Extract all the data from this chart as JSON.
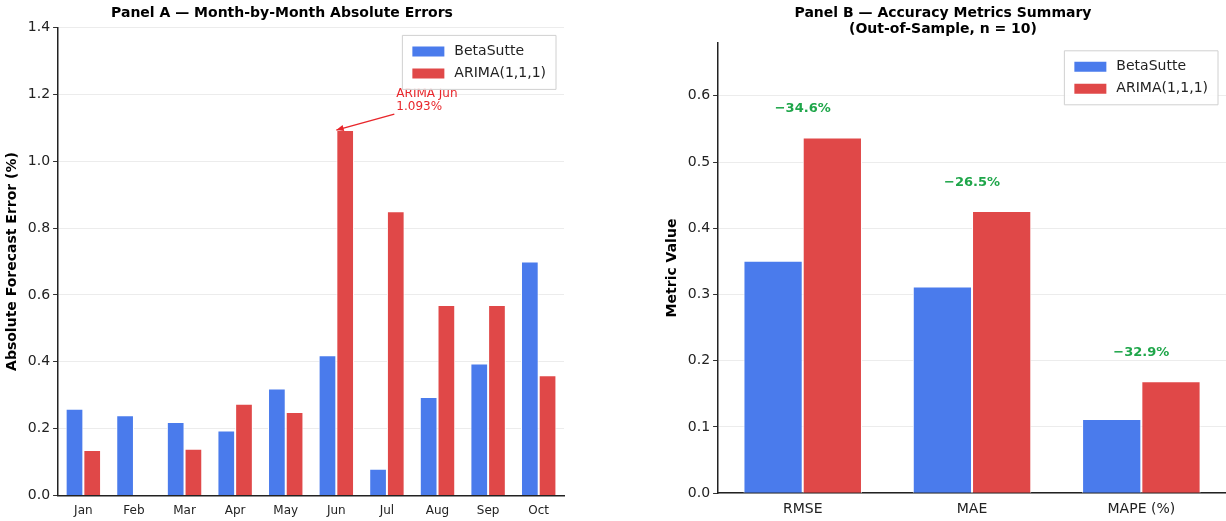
{
  "chart_data": [
    {
      "type": "bar",
      "title": "Panel A — Month-by-Month Absolute Errors",
      "ylabel": "Absolute Forecast Error (%)",
      "categories": [
        "Jan",
        "Feb",
        "Mar",
        "Apr",
        "May",
        "Jun",
        "Jul",
        "Aug",
        "Sep",
        "Oct"
      ],
      "series": [
        {
          "name": "BetaSutte",
          "color": "#4a7bec",
          "values": [
            0.26,
            0.24,
            0.22,
            0.195,
            0.32,
            0.42,
            0.08,
            0.295,
            0.395,
            0.7
          ]
        },
        {
          "name": "ARIMA(1,1,1)",
          "color": "#e04848",
          "values": [
            0.136,
            null,
            0.14,
            0.275,
            0.25,
            1.093,
            0.85,
            0.57,
            0.57,
            0.36
          ]
        }
      ],
      "ylim": [
        0,
        1.4
      ],
      "yticks": [
        {
          "value": 0,
          "label": "0.0"
        },
        {
          "value": 0.2,
          "label": "0.2"
        },
        {
          "value": 0.4,
          "label": "0.4"
        },
        {
          "value": 0.6,
          "label": "0.6"
        },
        {
          "value": 0.8,
          "label": "0.8"
        },
        {
          "value": 1.0,
          "label": "1.0"
        },
        {
          "value": 1.2,
          "label": "1.2"
        },
        {
          "value": 1.4,
          "label": "1.4"
        }
      ],
      "annotations": [
        {
          "text": "ARIMA Jun\n1.093%",
          "x": "Jun",
          "y": 1.093
        }
      ],
      "grid": "y",
      "legend": "top right"
    },
    {
      "type": "bar",
      "title": "Panel B — Accuracy Metrics Summary\n(Out-of-Sample, n = 10)",
      "ylabel": "Metric Value",
      "categories": [
        "RMSE",
        "MAE",
        "MAPE (%)"
      ],
      "series": [
        {
          "name": "BetaSutte",
          "color": "#4a7bec",
          "values": [
            0.351,
            0.312,
            0.112
          ]
        },
        {
          "name": "ARIMA(1,1,1)",
          "color": "#e04848",
          "values": [
            0.537,
            0.426,
            0.169
          ]
        }
      ],
      "ylim": [
        0,
        0.68
      ],
      "yticks": [
        {
          "value": 0,
          "label": "0.0"
        },
        {
          "value": 0.1,
          "label": "0.1"
        },
        {
          "value": 0.2,
          "label": "0.2"
        },
        {
          "value": 0.3,
          "label": "0.3"
        },
        {
          "value": 0.4,
          "label": "0.4"
        },
        {
          "value": 0.5,
          "label": "0.5"
        },
        {
          "value": 0.6,
          "label": "0.6"
        }
      ],
      "annotations": [
        {
          "text": "−34.6%",
          "x": "RMSE",
          "y": 0.537
        },
        {
          "text": "−26.5%",
          "x": "MAE",
          "y": 0.426
        },
        {
          "text": "−32.9%",
          "x": "MAPE (%)",
          "y": 0.169
        }
      ],
      "grid": "y",
      "legend": "top right"
    }
  ]
}
